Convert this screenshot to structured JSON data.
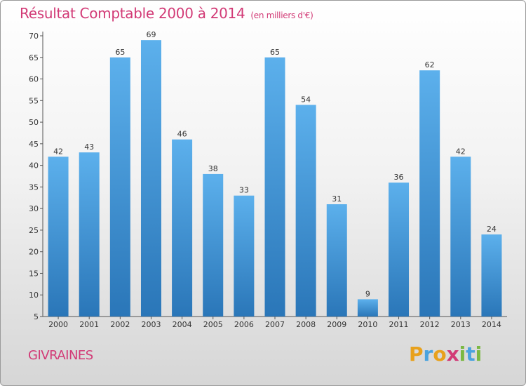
{
  "chart_data": {
    "type": "bar",
    "title": "Résultat Comptable 2000 à 2014",
    "subtitle": "(en milliers d'€)",
    "categories": [
      "2000",
      "2001",
      "2002",
      "2003",
      "2004",
      "2005",
      "2006",
      "2007",
      "2008",
      "2009",
      "2010",
      "2011",
      "2012",
      "2013",
      "2014"
    ],
    "values": [
      42,
      43,
      65,
      69,
      46,
      38,
      33,
      65,
      54,
      31,
      9,
      36,
      62,
      42,
      24
    ],
    "ylim": [
      5,
      70
    ],
    "yticks": [
      5,
      10,
      15,
      20,
      25,
      30,
      35,
      40,
      45,
      50,
      55,
      60,
      65,
      70
    ],
    "xlabel": "",
    "ylabel": "",
    "grid": false,
    "bar_color": "#3a8fd6"
  },
  "footer": {
    "town": "GIVRAINES",
    "logo_letters": [
      "P",
      "r",
      "o",
      "x",
      "i",
      "t",
      "i"
    ],
    "logo_colors": [
      "#e8a11c",
      "#4aa3df",
      "#e8a11c",
      "#d23a76",
      "#7bb843",
      "#4aa3df",
      "#7bb843"
    ]
  },
  "colors": {
    "title": "#d23a76",
    "axis": "#555555"
  }
}
